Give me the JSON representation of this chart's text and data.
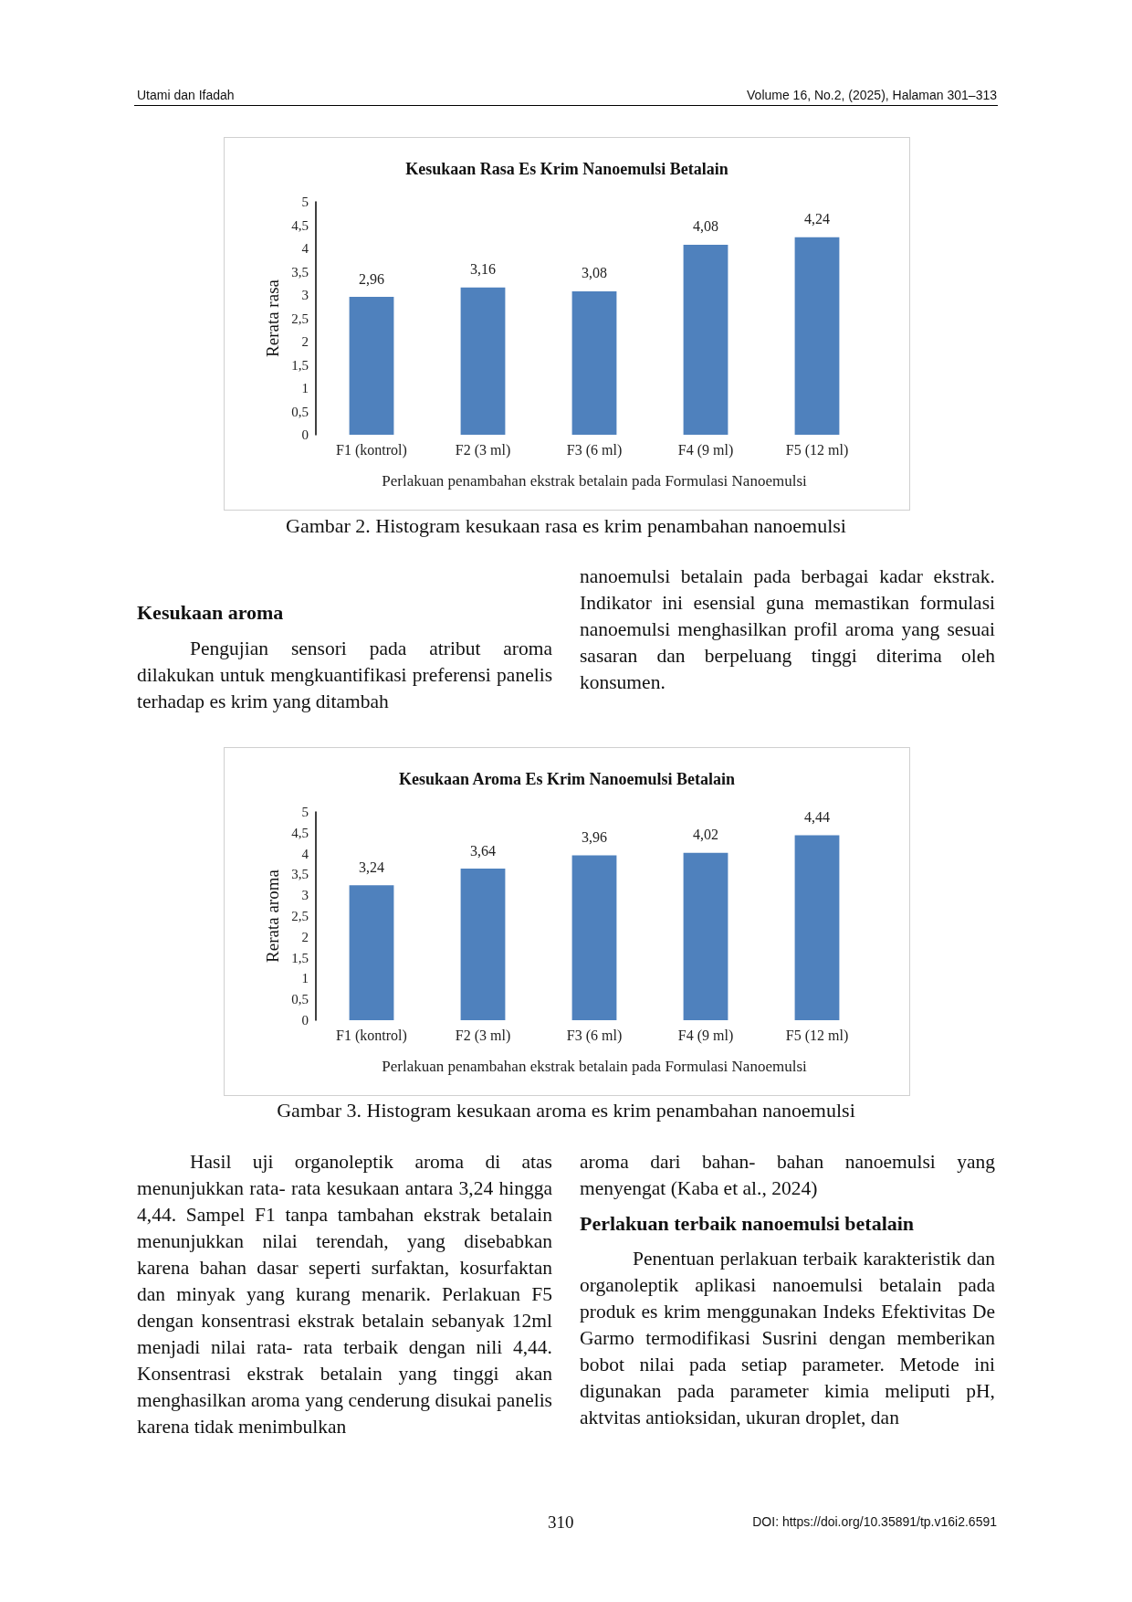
{
  "chart_data": [
    {
      "type": "bar",
      "title": "Kesukaan Rasa Es Krim Nanoemulsi Betalain",
      "xlabel": "Perlakuan penambahan ekstrak betalain pada Formulasi Nanoemulsi",
      "ylabel": "Rerata rasa",
      "categories": [
        "F1 (kontrol)",
        "F2 (3 ml)",
        "F3 (6 ml)",
        "F4 (9 ml)",
        "F5 (12 ml)"
      ],
      "values": [
        2.96,
        3.16,
        3.08,
        4.08,
        4.24
      ],
      "value_labels": [
        "2,96",
        "3,16",
        "3,08",
        "4,08",
        "4,24"
      ],
      "color": "#4f81bd",
      "ylim": [
        0,
        5
      ],
      "yticks": [
        0,
        {
          "value": 0.5,
          "label": "0,5"
        },
        1,
        {
          "value": 1.5,
          "label": "1,5"
        },
        2,
        {
          "value": 2.5,
          "label": "2,5"
        },
        3,
        {
          "value": 3.5,
          "label": "3,5"
        },
        4,
        {
          "value": 4.5,
          "label": "4,5"
        },
        5
      ],
      "grid": false,
      "annotations": [
        "Utami dan Ifadah",
        "Volume 16, No.2, (2025), Halaman 301–313",
        "Gambar 2. Histogram kesukaan rasa es krim penambahan nanoemulsi",
        "Kesukaan aroma",
        "Pengujian sensori pada atribut aroma dilakukan untuk mengkuantifikasi preferensi panelis terhadap es krim yang ditambah",
        "nanoemulsi betalain pada berbagai kadar ekstrak. Indikator ini esensial guna memastikan formulasi nanoemulsi menghasilkan profil aroma yang sesuai sasaran dan berpeluang tinggi diterima oleh konsumen."
      ]
    },
    {
      "type": "bar",
      "title": "Kesukaan Aroma Es Krim Nanoemulsi Betalain",
      "xlabel": "Perlakuan penambahan ekstrak betalain pada Formulasi Nanoemulsi",
      "ylabel": "Rerata aroma",
      "categories": [
        "F1 (kontrol)",
        "F2 (3 ml)",
        "F3 (6 ml)",
        "F4 (9 ml)",
        "F5 (12 ml)"
      ],
      "values": [
        3.24,
        3.64,
        3.96,
        4.02,
        4.44
      ],
      "value_labels": [
        "3,24",
        "3,64",
        "3,96",
        "4,02",
        "4,44"
      ],
      "color": "#4f81bd",
      "ylim": [
        0,
        5
      ],
      "yticks": [
        0,
        {
          "value": 0.5,
          "label": "0,5"
        },
        1,
        {
          "value": 1.5,
          "label": "1,5"
        },
        2,
        {
          "value": 2.5,
          "label": "2,5"
        },
        3,
        {
          "value": 3.5,
          "label": "3,5"
        },
        4,
        {
          "value": 4.5,
          "label": "4,5"
        },
        5
      ],
      "grid": false,
      "annotations": [
        "Gambar 3. Histogram kesukaan aroma es krim penambahan nanoemulsi",
        "Hasil uji organoleptik aroma di atas menunjukkan rata- rata kesukaan antara 3,24 hingga 4,44. Sampel F1 tanpa tambahan ekstrak betalain menunjukkan nilai terendah, yang disebabkan karena bahan dasar seperti surfaktan, kosurfaktan dan minyak yang kurang menarik. Perlakuan F5 dengan konsentrasi ekstrak betalain sebanyak 12ml menjadi nilai rata- rata terbaik dengan nili 4,44. Konsentrasi ekstrak betalain yang tinggi akan menghasilkan aroma yang cenderung disukai panelis karena tidak menimbulkan",
        "aroma dari bahan- bahan nanoemulsi yang menyengat (Kaba et al., 2024)",
        "Perlakuan terbaik nanoemulsi betalain",
        "Penentuan perlakuan terbaik karakteristik dan organoleptik aplikasi nanoemulsi betalain pada produk es krim menggunakan Indeks Efektivitas De Garmo termodifikasi Susrini dengan memberikan bobot nilai pada setiap parameter. Metode ini digunakan pada parameter kimia meliputi pH, aktvitas antioksidan, ukuran droplet, dan",
        "310",
        "DOI: https://doi.org/10.35891/tp.v16i2.6591"
      ]
    }
  ]
}
